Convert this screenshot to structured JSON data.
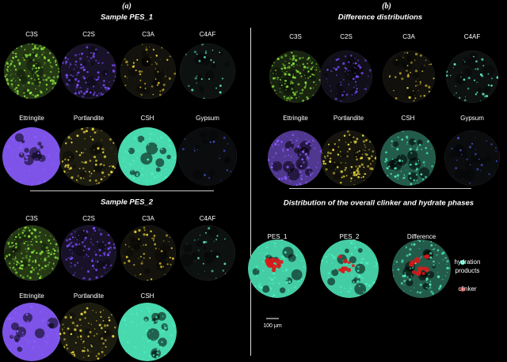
{
  "panels": [
    {
      "label": "(a)",
      "sections": [
        {
          "title": "Sample PES_1",
          "images": [
            "C3S",
            "C2S",
            "C3A",
            "C4AF",
            "Ettringite",
            "Portlandite",
            "CSH",
            "Gypsum"
          ]
        },
        {
          "title": "Sample PES_2",
          "images": [
            "C3S",
            "C2S",
            "C3A",
            "C4AF",
            "Ettringite",
            "Portlandite",
            "CSH"
          ]
        }
      ]
    },
    {
      "label": "(b)",
      "sections": [
        {
          "title": "Difference distributions",
          "images": [
            "C3S",
            "C2S",
            "C3A",
            "C4AF",
            "Ettringite",
            "Portlandite",
            "CSH",
            "Gypsum"
          ]
        },
        {
          "title": "Distribution of the overall clinker and hydrate phases",
          "images": [
            "PES_1",
            "PES_2",
            "Difference"
          ]
        }
      ]
    }
  ],
  "legend": [
    {
      "lines": [
        "hydration",
        "products"
      ]
    },
    {
      "lines": [
        "clinker"
      ]
    }
  ],
  "scale_bar": "100 µm"
}
